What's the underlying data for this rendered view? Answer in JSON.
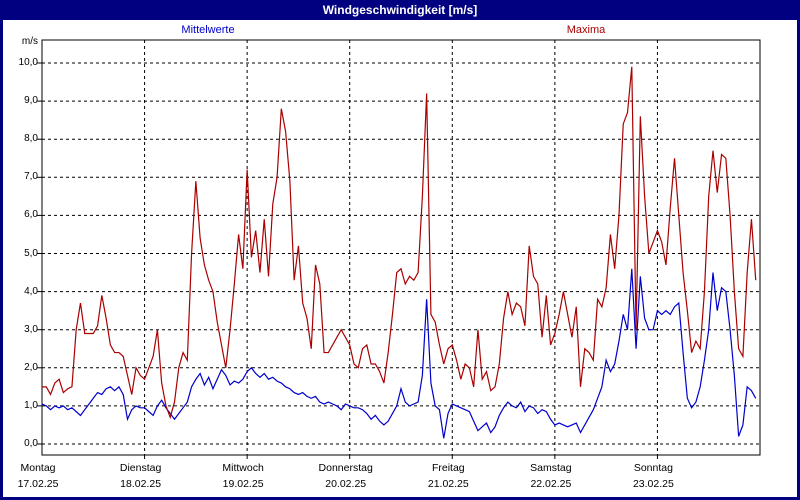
{
  "title_bar": {
    "title": "Windgeschwindigkeit [m/s]",
    "bg_color": "#000080",
    "text_color": "#FFFFFF"
  },
  "legend": {
    "mean_label": "Mittelwerte",
    "max_label": "Maxima",
    "mean_color": "#0000CC",
    "max_color": "#AA0000"
  },
  "axis": {
    "unit_label": "m/s",
    "y_ticks": [
      "10,0",
      "9,0",
      "8,0",
      "7,0",
      "6,0",
      "5,0",
      "4,0",
      "3,0",
      "2,0",
      "1,0",
      "0,0"
    ]
  },
  "x_axis": {
    "days": [
      {
        "name": "Montag",
        "date": "17.02.25"
      },
      {
        "name": "Dienstag",
        "date": "18.02.25"
      },
      {
        "name": "Mittwoch",
        "date": "19.02.25"
      },
      {
        "name": "Donnerstag",
        "date": "20.02.25"
      },
      {
        "name": "Freitag",
        "date": "21.02.25"
      },
      {
        "name": "Samstag",
        "date": "22.02.25"
      },
      {
        "name": "Sonntag",
        "date": "23.02.25"
      }
    ]
  },
  "chart_data": {
    "type": "line",
    "title": "Windgeschwindigkeit [m/s]",
    "ylabel": "m/s",
    "ylim": [
      0,
      10
    ],
    "x_resolution": "hourly",
    "x_span_days": 7,
    "grid": "dashed",
    "legend_position": "top",
    "series": [
      {
        "name": "Mittelwerte",
        "color": "#0000CC",
        "values": [
          1.05,
          1.0,
          0.9,
          1.0,
          0.95,
          1.0,
          0.9,
          0.95,
          0.85,
          0.75,
          0.9,
          1.05,
          1.2,
          1.35,
          1.3,
          1.45,
          1.5,
          1.4,
          1.5,
          1.3,
          0.65,
          0.9,
          1.0,
          0.95,
          0.95,
          0.85,
          0.75,
          1.0,
          1.15,
          0.95,
          0.8,
          0.65,
          0.8,
          0.95,
          1.1,
          1.5,
          1.7,
          1.85,
          1.55,
          1.75,
          1.45,
          1.7,
          1.95,
          1.8,
          1.55,
          1.65,
          1.6,
          1.7,
          1.9,
          2.0,
          1.85,
          1.75,
          1.85,
          1.7,
          1.75,
          1.65,
          1.6,
          1.5,
          1.45,
          1.35,
          1.3,
          1.35,
          1.25,
          1.2,
          1.25,
          1.1,
          1.05,
          1.1,
          1.05,
          1.0,
          0.9,
          1.05,
          1.0,
          0.95,
          0.95,
          0.9,
          0.8,
          0.65,
          0.75,
          0.6,
          0.5,
          0.6,
          0.8,
          1.0,
          1.45,
          1.1,
          1.0,
          1.05,
          1.1,
          1.8,
          3.8,
          1.6,
          1.0,
          0.9,
          0.15,
          0.8,
          1.05,
          1.0,
          0.95,
          0.9,
          0.85,
          0.6,
          0.35,
          0.45,
          0.55,
          0.3,
          0.45,
          0.75,
          0.95,
          1.1,
          1.0,
          0.95,
          1.1,
          0.85,
          1.0,
          0.95,
          0.8,
          0.9,
          0.85,
          0.65,
          0.5,
          0.55,
          0.5,
          0.45,
          0.5,
          0.55,
          0.3,
          0.5,
          0.7,
          0.9,
          1.2,
          1.5,
          2.2,
          1.9,
          2.1,
          2.7,
          3.4,
          3.0,
          4.6,
          2.5,
          4.4,
          3.3,
          3.0,
          3.0,
          3.5,
          3.4,
          3.5,
          3.4,
          3.6,
          3.7,
          2.4,
          1.2,
          0.95,
          1.1,
          1.5,
          2.2,
          3.0,
          4.5,
          3.5,
          4.1,
          4.0,
          3.0,
          1.8,
          0.2,
          0.5,
          1.5,
          1.4,
          1.2
        ]
      },
      {
        "name": "Maxima",
        "color": "#AA0000",
        "values": [
          1.5,
          1.5,
          1.3,
          1.6,
          1.7,
          1.35,
          1.45,
          1.5,
          3.0,
          3.7,
          2.9,
          2.9,
          2.9,
          3.1,
          3.9,
          3.3,
          2.6,
          2.4,
          2.4,
          2.3,
          1.8,
          1.3,
          2.0,
          1.8,
          1.7,
          2.0,
          2.3,
          3.0,
          1.6,
          1.0,
          0.7,
          1.1,
          2.0,
          2.4,
          2.2,
          5.0,
          6.9,
          5.4,
          4.7,
          4.3,
          4.0,
          3.2,
          2.6,
          2.0,
          3.0,
          4.2,
          5.5,
          4.6,
          7.2,
          4.9,
          5.6,
          4.5,
          5.9,
          4.4,
          6.3,
          7.0,
          8.8,
          8.2,
          6.9,
          4.3,
          5.2,
          3.7,
          3.3,
          2.5,
          4.7,
          4.2,
          2.4,
          2.4,
          2.6,
          2.8,
          3.0,
          2.8,
          2.6,
          2.1,
          2.0,
          2.5,
          2.6,
          2.1,
          2.1,
          1.9,
          1.6,
          2.4,
          3.4,
          4.5,
          4.6,
          4.2,
          4.4,
          4.3,
          4.5,
          6.5,
          9.2,
          3.4,
          3.2,
          2.6,
          2.1,
          2.5,
          2.6,
          2.2,
          1.7,
          2.1,
          2.0,
          1.5,
          3.0,
          1.7,
          1.9,
          1.4,
          1.5,
          2.1,
          3.3,
          4.0,
          3.4,
          3.7,
          3.6,
          3.1,
          5.2,
          4.4,
          4.2,
          2.8,
          3.9,
          2.6,
          2.9,
          3.4,
          4.0,
          3.4,
          2.8,
          3.6,
          1.5,
          2.5,
          2.4,
          2.2,
          3.8,
          3.6,
          4.1,
          5.5,
          4.6,
          6.0,
          8.4,
          8.7,
          9.9,
          3.0,
          8.6,
          6.5,
          5.0,
          5.3,
          5.6,
          5.3,
          4.7,
          6.2,
          7.5,
          6.0,
          4.5,
          3.5,
          2.4,
          2.7,
          2.5,
          4.0,
          6.5,
          7.7,
          6.6,
          7.6,
          7.5,
          6.0,
          4.0,
          2.5,
          2.3,
          4.5,
          5.9,
          4.3
        ]
      }
    ]
  }
}
